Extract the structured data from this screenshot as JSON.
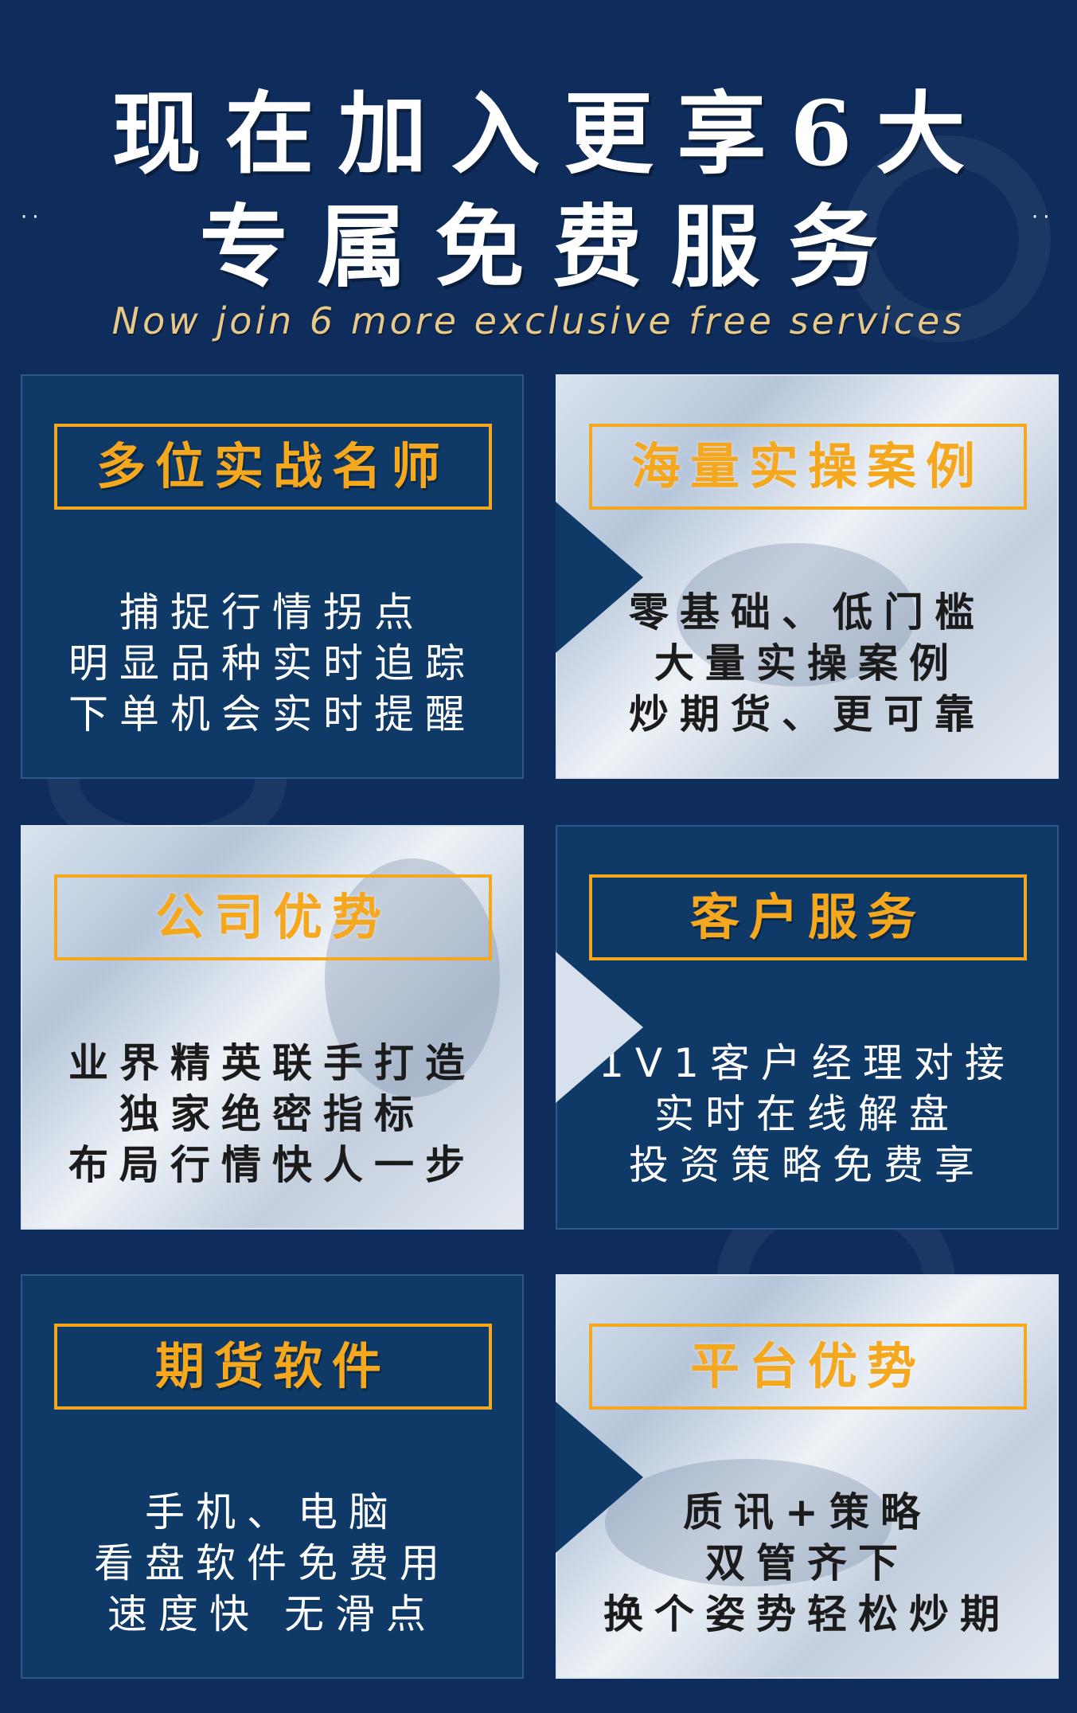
{
  "header": {
    "line1": "现在加入更享6大",
    "line2": "专属免费服务",
    "subtitle": "Now join 6 more exclusive free services",
    "dots": "··"
  },
  "panels": [
    {
      "title": "多位实战名师",
      "lines": [
        "捕捉行情拐点",
        "明显品种实时追踪",
        "下单机会实时提醒"
      ]
    },
    {
      "title": "海量实操案例",
      "lines": [
        "零基础、低门槛",
        "大量实操案例",
        "炒期货、更可靠"
      ]
    },
    {
      "title": "公司优势",
      "lines": [
        "业界精英联手打造",
        "独家绝密指标",
        "布局行情快人一步"
      ]
    },
    {
      "title": "客户服务",
      "lines": [
        "1V1客户经理对接",
        "实时在线解盘",
        "投资策略免费享"
      ]
    },
    {
      "title": "期货软件",
      "lines": [
        "手机、电脑",
        "看盘软件免费用",
        "速度快  无滑点"
      ]
    },
    {
      "title": "平台优势",
      "lines": [
        "质讯+策略",
        "双管齐下",
        "换个姿势轻松炒期"
      ]
    }
  ],
  "colors": {
    "background": "#0f2d5c",
    "panel_dark": "#0f3a68",
    "accent": "#f5a71e",
    "subtitle": "#e7c98a"
  }
}
